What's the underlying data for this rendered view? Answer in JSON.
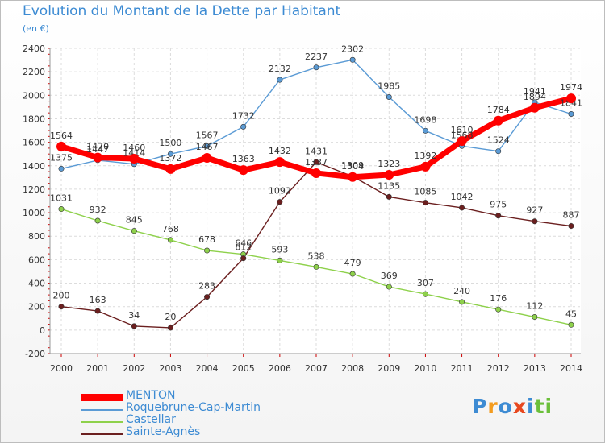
{
  "title": "Evolution du Montant de la Dette par Habitant",
  "unit": "(en €)",
  "brand": {
    "letters": [
      "P",
      "r",
      "o",
      "x",
      "i",
      "t",
      "i"
    ],
    "colors": [
      "#3d8bd3",
      "#f39c1f",
      "#3d8bd3",
      "#e8481f",
      "#3d8bd3",
      "#6bbf3a",
      "#6bbf3a"
    ]
  },
  "chart_data": {
    "type": "line",
    "title": "Evolution du Montant de la Dette par Habitant",
    "ylabel": "(en €)",
    "xlabel": "",
    "ylim": [
      -200,
      2400
    ],
    "yticks": [
      -200,
      0,
      200,
      400,
      600,
      800,
      1000,
      1200,
      1400,
      1600,
      1800,
      2000,
      2200,
      2400
    ],
    "x": [
      "2000",
      "2001",
      "2002",
      "2003",
      "2004",
      "2005",
      "2006",
      "2007",
      "2008",
      "2009",
      "2010",
      "2011",
      "2012",
      "2013",
      "2014"
    ],
    "grid": true,
    "legend_position": "bottom",
    "series": [
      {
        "name": "Roquebrune-Cap-Martin",
        "color": "#5b9bd5",
        "values": [
          1375,
          1447,
          1414,
          1500,
          1567,
          1732,
          2132,
          2237,
          2302,
          1985,
          1698,
          1568,
          1524,
          1941,
          1841
        ]
      },
      {
        "name": "Castellar",
        "color": "#8ed14b",
        "values": [
          1031,
          932,
          845,
          768,
          678,
          646,
          593,
          538,
          479,
          369,
          307,
          240,
          176,
          112,
          45
        ]
      },
      {
        "name": "Sainte-Agnès",
        "color": "#6b1f1f",
        "values": [
          200,
          163,
          34,
          20,
          283,
          612,
          1092,
          1431,
          1309,
          1135,
          1085,
          1042,
          975,
          927,
          887
        ]
      },
      {
        "name": "MENTON",
        "color": "#ff0000",
        "values": [
          1564,
          1470,
          1460,
          1372,
          1467,
          1363,
          1432,
          1337,
          1304,
          1323,
          1392,
          1610,
          1784,
          1894,
          1974
        ]
      }
    ]
  }
}
